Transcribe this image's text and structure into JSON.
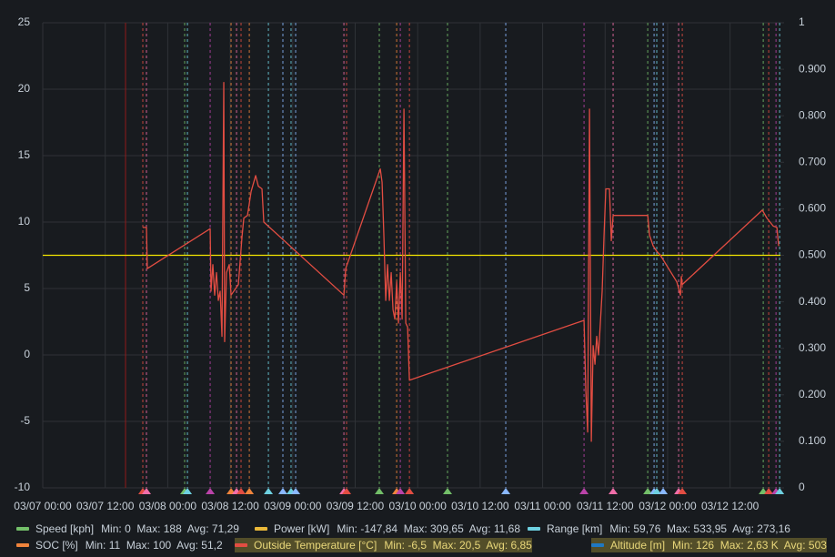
{
  "chart_data": {
    "type": "line",
    "xlim": [
      "03/07 00:00",
      "03/12 21:40"
    ],
    "xticks": [
      "03/07 00:00",
      "03/07 12:00",
      "03/08 00:00",
      "03/08 12:00",
      "03/09 00:00",
      "03/09 12:00",
      "03/10 00:00",
      "03/10 12:00",
      "03/11 00:00",
      "03/11 12:00",
      "03/12 00:00",
      "03/12 12:00"
    ],
    "ylim": [
      -10,
      25
    ],
    "yticks": [
      25,
      20,
      15,
      10,
      5,
      0,
      -5,
      -10
    ],
    "y2lim": [
      0,
      1
    ],
    "y2ticks": [
      0,
      {
        "value": 0.1,
        "label": "0.100"
      },
      {
        "value": 0.2,
        "label": "0.200"
      },
      {
        "value": 0.3,
        "label": "0.300"
      },
      {
        "value": 0.4,
        "label": "0.400"
      },
      {
        "value": 0.5,
        "label": "0.500"
      },
      {
        "value": 0.6,
        "label": "0.600"
      },
      {
        "value": 0.7,
        "label": "0.700"
      },
      {
        "value": 0.8,
        "label": "0.800"
      },
      {
        "value": 0.9,
        "label": "0.900"
      },
      1
    ],
    "grid": true,
    "reference_line": {
      "value": 0.5,
      "axis": "y2",
      "color": "#f2e600"
    },
    "annotations": [
      {
        "x": "03/07 15:54",
        "color": "#8f1a1a",
        "dash": false
      },
      {
        "x": "03/07 19:13",
        "color": "#e24d42",
        "dash": true
      },
      {
        "x": "03/07 19:55",
        "color": "#f06ea9",
        "dash": true
      },
      {
        "x": "03/08 03:15",
        "color": "#73bf69",
        "dash": true
      },
      {
        "x": "03/08 03:47",
        "color": "#6ed0e0",
        "dash": true
      },
      {
        "x": "03/08 08:09",
        "color": "#ba43a9",
        "dash": true
      },
      {
        "x": "03/08 12:10",
        "color": "#ef843c",
        "dash": true
      },
      {
        "x": "03/08 13:13",
        "color": "#f06ea9",
        "dash": true
      },
      {
        "x": "03/08 14:05",
        "color": "#e24d42",
        "dash": true
      },
      {
        "x": "03/08 15:40",
        "color": "#ef843c",
        "dash": true
      },
      {
        "x": "03/08 19:20",
        "color": "#6ed0e0",
        "dash": true
      },
      {
        "x": "03/08 22:07",
        "color": "#8ab8ff",
        "dash": true
      },
      {
        "x": "03/08 23:41",
        "color": "#6ed0e0",
        "dash": true
      },
      {
        "x": "03/09 00:34",
        "color": "#8ab8ff",
        "dash": true
      },
      {
        "x": "03/09 09:50",
        "color": "#f06ea9",
        "dash": true
      },
      {
        "x": "03/09 10:21",
        "color": "#e24d42",
        "dash": true
      },
      {
        "x": "03/09 16:38",
        "color": "#73bf69",
        "dash": true
      },
      {
        "x": "03/09 19:58",
        "color": "#ef843c",
        "dash": true
      },
      {
        "x": "03/09 20:40",
        "color": "#ba43a9",
        "dash": true
      },
      {
        "x": "03/09 22:25",
        "color": "#e24d42",
        "dash": true
      },
      {
        "x": "03/10 05:44",
        "color": "#73bf69",
        "dash": true
      },
      {
        "x": "03/10 16:55",
        "color": "#8ab8ff",
        "dash": true
      },
      {
        "x": "03/11 07:57",
        "color": "#ba43a9",
        "dash": true
      },
      {
        "x": "03/11 13:32",
        "color": "#f06ea9",
        "dash": true
      },
      {
        "x": "03/11 20:11",
        "color": "#73bf69",
        "dash": true
      },
      {
        "x": "03/11 21:24",
        "color": "#8ab8ff",
        "dash": true
      },
      {
        "x": "03/11 21:55",
        "color": "#6ed0e0",
        "dash": true
      },
      {
        "x": "03/11 23:09",
        "color": "#8ab8ff",
        "dash": true
      },
      {
        "x": "03/12 02:07",
        "color": "#f06ea9",
        "dash": true
      },
      {
        "x": "03/12 02:49",
        "color": "#e24d42",
        "dash": true
      },
      {
        "x": "03/12 18:22",
        "color": "#73bf69",
        "dash": true
      },
      {
        "x": "03/12 19:25",
        "color": "#e24d42",
        "dash": true
      },
      {
        "x": "03/12 20:49",
        "color": "#ba43a9",
        "dash": true
      },
      {
        "x": "03/12 21:31",
        "color": "#6ed0e0",
        "dash": true
      }
    ],
    "series": [
      {
        "name": "Speed [kph]",
        "color": "#73bf69",
        "stats": "Min: 0  Max: 188  Avg: 71,29"
      },
      {
        "name": "Power [kW]",
        "color": "#eab839",
        "stats": "Min: -147,84  Max: 309,65  Avg: 11,68"
      },
      {
        "name": "Range [km]",
        "color": "#6ed0e0",
        "stats": "Min: 59,76  Max: 533,95  Avg: 273,16"
      },
      {
        "name": "SOC [%]",
        "color": "#ef843c",
        "stats": "Min: 11  Max: 100  Avg: 51,2"
      },
      {
        "name": "Outside Temperature [°C]",
        "color": "#e24d42",
        "stats": "Min: -6,5  Max: 20,5  Avg: 6,85",
        "highlighted": true,
        "x": [
          "03/07 19:13",
          "03/07 19:55",
          "03/07 20:05",
          "03/08 08:09",
          "03/08 08:19",
          "03/08 08:40",
          "03/08 09:01",
          "03/08 09:22",
          "03/08 09:43",
          "03/08 10:04",
          "03/08 10:25",
          "03/08 10:46",
          "03/08 10:56",
          "03/08 11:17",
          "03/08 11:49",
          "03/08 12:10",
          "03/08 13:34",
          "03/08 14:16",
          "03/08 14:37",
          "03/08 15:19",
          "03/08 16:01",
          "03/08 16:53",
          "03/08 17:24",
          "03/08 18:06",
          "03/08 18:27",
          "03/09 09:50",
          "03/09 10:11",
          "03/09 16:49",
          "03/09 17:10",
          "03/09 17:31",
          "03/09 17:52",
          "03/09 18:13",
          "03/09 18:34",
          "03/09 18:55",
          "03/09 19:16",
          "03/09 19:37",
          "03/09 19:58",
          "03/09 20:19",
          "03/09 20:40",
          "03/09 21:01",
          "03/09 21:22",
          "03/09 21:43",
          "03/09 22:04",
          "03/09 22:25",
          "03/11 07:57",
          "03/11 08:18",
          "03/11 08:39",
          "03/11 09:00",
          "03/11 09:21",
          "03/11 09:42",
          "03/11 10:03",
          "03/11 10:23",
          "03/11 10:44",
          "03/11 11:26",
          "03/11 11:47",
          "03/11 12:08",
          "03/11 12:50",
          "03/11 13:11",
          "03/11 13:32",
          "03/11 20:11",
          "03/11 20:32",
          "03/11 21:14",
          "03/11 21:55",
          "03/11 22:37",
          "03/12 01:46",
          "03/12 02:28",
          "03/12 02:38",
          "03/12 02:49",
          "03/12 18:11",
          "03/12 19:04",
          "03/12 20:17",
          "03/12 20:59",
          "03/12 21:20"
        ],
        "values": [
          9.6,
          9.6,
          6.5,
          9.5,
          4.8,
          6.8,
          4.5,
          6.2,
          4.1,
          4.8,
          1.4,
          20.5,
          1.0,
          6.2,
          6.8,
          4.5,
          5.3,
          8.9,
          10.3,
          10.5,
          12.3,
          13.5,
          12.7,
          12.5,
          10.0,
          4.5,
          6.5,
          14.0,
          13.0,
          8.9,
          4.1,
          6.8,
          4.1,
          6.2,
          3.4,
          2.7,
          5.5,
          2.4,
          6.2,
          2.7,
          18.5,
          2.4,
          2.1,
          -1.9,
          2.6,
          -2.7,
          -5.8,
          18.5,
          -6.5,
          0.7,
          -0.7,
          1.4,
          0,
          4.8,
          8.9,
          12.5,
          12.5,
          8.6,
          10.5,
          10.5,
          9.0,
          8.2,
          7.8,
          7.5,
          5.5,
          4.5,
          5.9,
          5.3,
          10.9,
          10.3,
          9.7,
          9.6,
          8.2
        ]
      },
      {
        "name": "Altitude [m]",
        "color": "#1f78c1",
        "stats": "Min: 126  Max: 2,63 K  Avg: 503",
        "highlighted": true
      }
    ]
  }
}
